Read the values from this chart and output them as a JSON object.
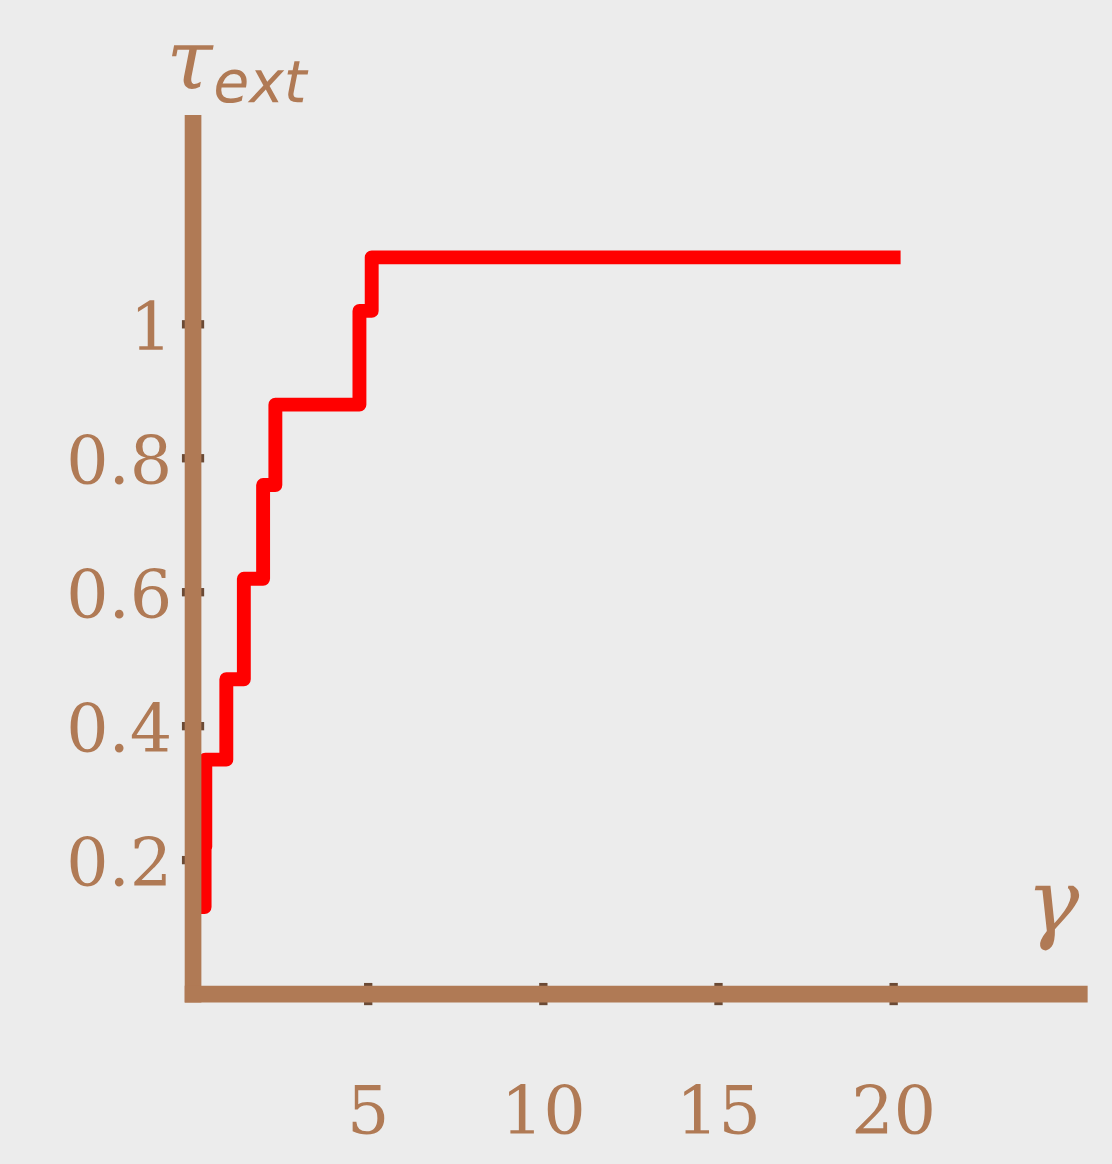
{
  "chart_data": {
    "type": "step",
    "xlabel": "γ",
    "ylabel": "τ$_{ext}$",
    "x": [
      0.3,
      0.33,
      0.35,
      0.95,
      1.45,
      2.0,
      2.35,
      4.75,
      5.1,
      20
    ],
    "series": [
      {
        "color": "#ff0000",
        "values": [
          0.13,
          0.22,
          0.35,
          0.47,
          0.62,
          0.76,
          0.88,
          1.02,
          1.1,
          1.1
        ]
      }
    ],
    "xlim": [
      0,
      25.3
    ],
    "ylim": [
      0,
      1.3
    ],
    "xticks": [
      5,
      10,
      15,
      20
    ],
    "yticks": [
      0.2,
      0.4,
      0.6,
      0.8,
      1
    ],
    "grid": false,
    "legend": false,
    "marker": "none",
    "line_style": "solid"
  }
}
